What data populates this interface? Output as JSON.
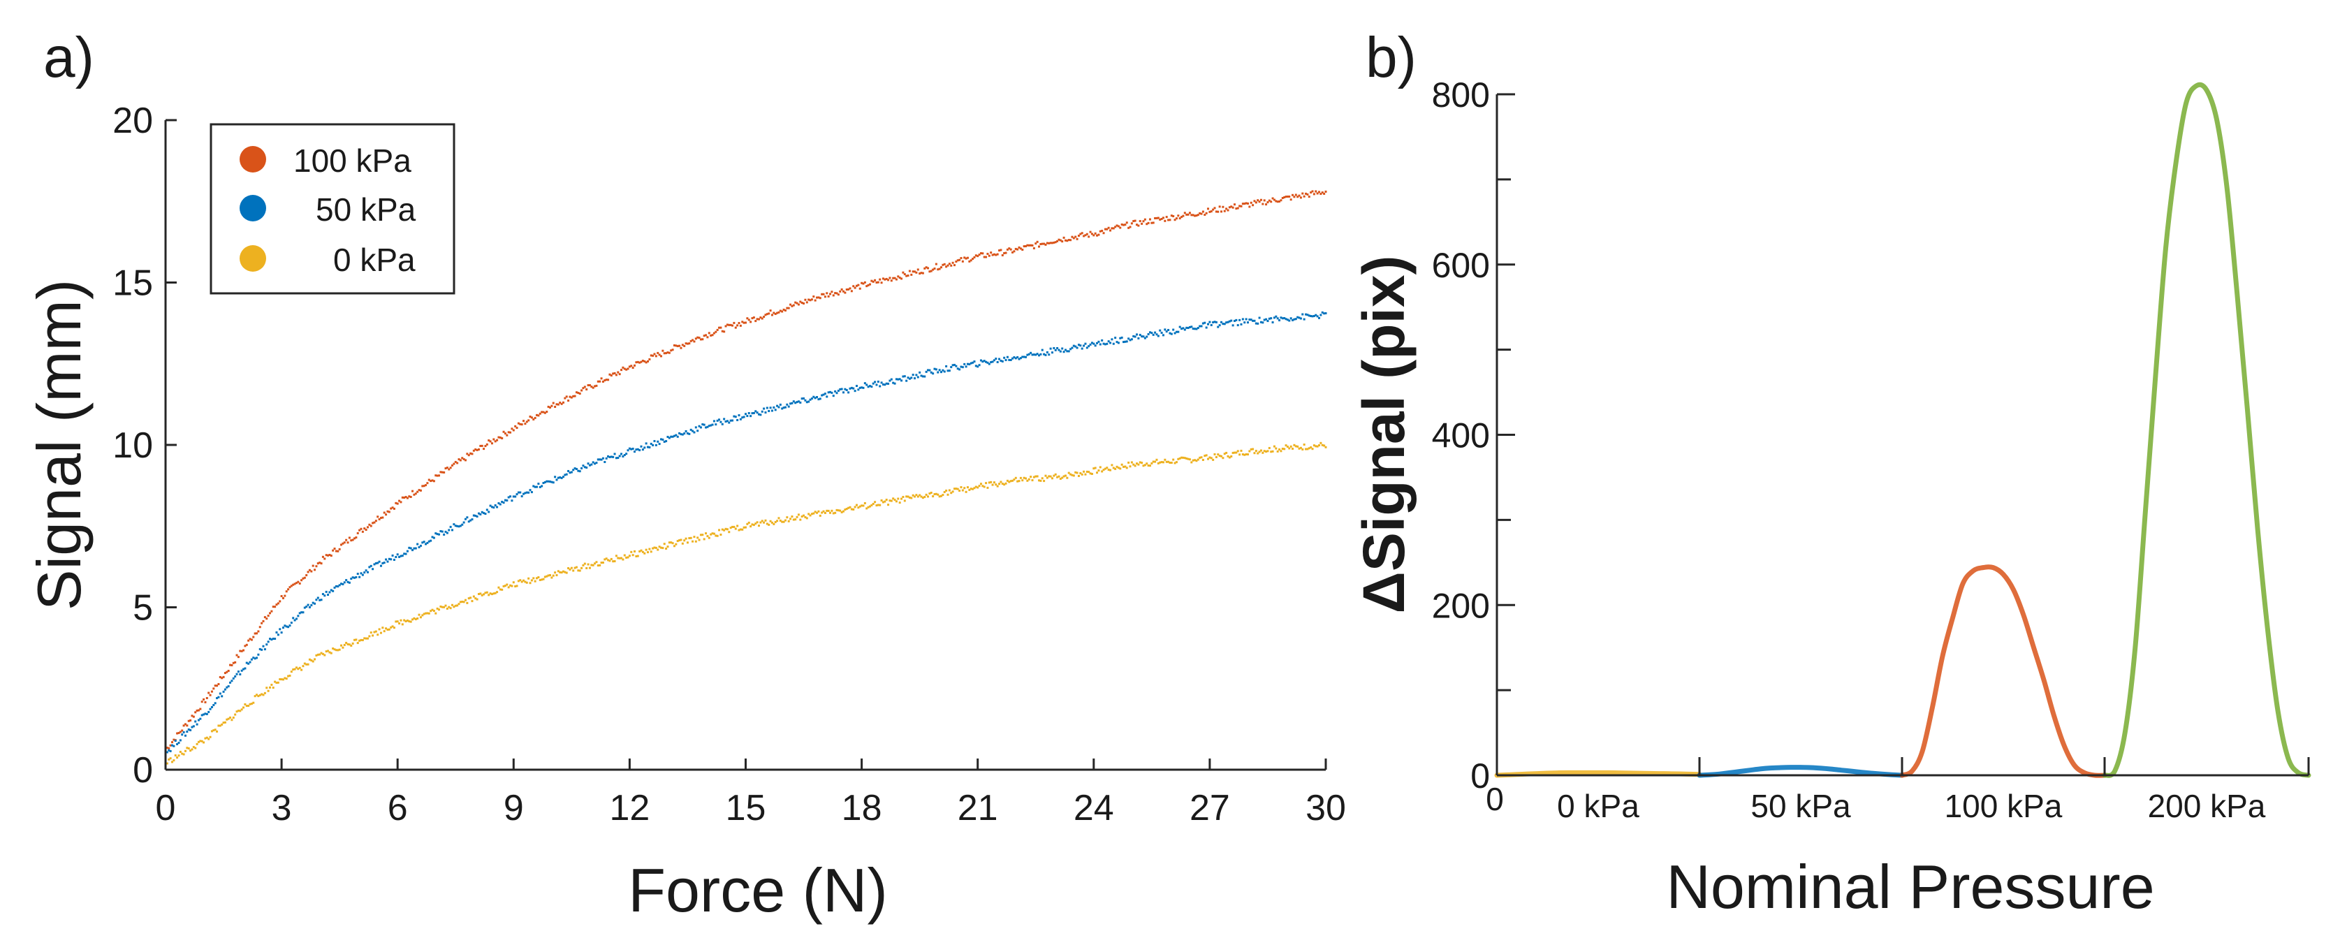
{
  "panel_labels": {
    "a": "a)",
    "b": "b)"
  },
  "chart_data": [
    {
      "type": "scatter",
      "panel": "a",
      "xlabel": "Force (N)",
      "ylabel": "Signal (mm)",
      "xlim": [
        0,
        30
      ],
      "ylim": [
        0,
        20
      ],
      "xticks": [
        0,
        3,
        6,
        9,
        12,
        15,
        18,
        21,
        24,
        27,
        30
      ],
      "yticks": [
        0,
        5,
        10,
        15,
        20
      ],
      "legend_position": "top-left",
      "x": [
        0,
        1,
        2,
        3,
        4,
        5,
        6,
        7,
        8,
        9,
        10,
        11,
        12,
        13,
        14,
        15,
        16,
        17,
        18,
        19,
        20,
        21,
        22,
        23,
        24,
        25,
        26,
        27,
        28,
        29,
        30
      ],
      "series": [
        {
          "name": "100 kPa",
          "color": "#D95319",
          "values": [
            0.6,
            2.1,
            3.7,
            5.3,
            6.4,
            7.3,
            8.2,
            9.0,
            9.8,
            10.5,
            11.2,
            11.8,
            12.4,
            12.9,
            13.4,
            13.8,
            14.2,
            14.6,
            14.9,
            15.2,
            15.5,
            15.8,
            16.0,
            16.3,
            16.5,
            16.8,
            17.0,
            17.2,
            17.4,
            17.6,
            17.8
          ]
        },
        {
          "name": "50 kPa",
          "color": "#0072BD",
          "values": [
            0.5,
            1.7,
            3.1,
            4.3,
            5.3,
            6.0,
            6.6,
            7.2,
            7.8,
            8.4,
            8.9,
            9.4,
            9.8,
            10.2,
            10.6,
            10.9,
            11.2,
            11.5,
            11.8,
            12.0,
            12.3,
            12.5,
            12.7,
            12.9,
            13.1,
            13.3,
            13.5,
            13.7,
            13.8,
            13.9,
            14.0
          ]
        },
        {
          "name": "0 kPa",
          "color": "#EDB120",
          "values": [
            0.2,
            0.9,
            1.9,
            2.8,
            3.5,
            4.0,
            4.5,
            4.9,
            5.3,
            5.7,
            6.0,
            6.3,
            6.6,
            6.9,
            7.2,
            7.5,
            7.7,
            7.9,
            8.1,
            8.3,
            8.5,
            8.7,
            8.9,
            9.0,
            9.2,
            9.4,
            9.5,
            9.6,
            9.8,
            9.9,
            10.0
          ]
        }
      ]
    },
    {
      "type": "line",
      "panel": "b",
      "xlabel": "Nominal Pressure",
      "ylabel": "ΔSignal (pix)",
      "ylim": [
        0,
        800
      ],
      "yticks": [
        0,
        200,
        400,
        600,
        800
      ],
      "x_origin_label": "0",
      "categories": [
        "0 kPa",
        "50 kPa",
        "100 kPa",
        "200 kPa"
      ],
      "x": [
        0,
        0.05,
        0.1,
        0.15,
        0.2,
        0.25,
        0.3,
        0.35,
        0.4,
        0.45,
        0.5,
        0.55,
        0.6,
        0.65,
        0.7,
        0.75,
        0.8,
        0.85,
        0.9,
        0.95,
        1
      ],
      "series": [
        {
          "name": "0 kPa",
          "color": "#EDB120",
          "values": [
            0,
            0.5,
            1,
            1.5,
            2,
            2.5,
            2.8,
            3,
            3,
            3,
            3,
            3,
            2.8,
            2.6,
            2.4,
            2.2,
            2,
            1.8,
            1.6,
            1.3,
            1
          ]
        },
        {
          "name": "50 kPa",
          "color": "#0072BD",
          "values": [
            0,
            0.6,
            1.5,
            3,
            4.5,
            6,
            7.5,
            8.5,
            9,
            9.3,
            9.3,
            9,
            8.3,
            7.3,
            6,
            4.8,
            3.5,
            2.4,
            1.4,
            0.6,
            0
          ]
        },
        {
          "name": "100 kPa",
          "color": "#D95319",
          "values": [
            0,
            5,
            28,
            80,
            140,
            185,
            225,
            240,
            244,
            244,
            236,
            218,
            188,
            150,
            112,
            70,
            35,
            12,
            3,
            0,
            0
          ]
        },
        {
          "name": "200 kPa",
          "color": "#77AC30",
          "values": [
            0,
            5,
            50,
            150,
            310,
            470,
            620,
            720,
            790,
            810,
            805,
            770,
            690,
            565,
            430,
            290,
            170,
            75,
            20,
            3,
            0
          ]
        }
      ]
    }
  ]
}
